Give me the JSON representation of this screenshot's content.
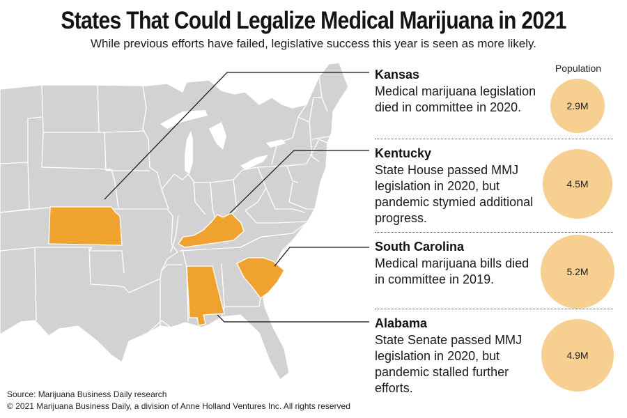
{
  "header": {
    "title": "States That Could Legalize Medical Marijuana in 2021",
    "subtitle": "While previous efforts have failed, legislative success this year is seen as more likely."
  },
  "population_header": "Population",
  "states": [
    {
      "name": "Kansas",
      "description": "Medical marijuana legislation died in committee in 2020.",
      "population": "2.9M",
      "population_millions": 2.9
    },
    {
      "name": "Kentucky",
      "description": "State House passed MMJ legislation in 2020, but pandemic stymied additional progress.",
      "population": "4.5M",
      "population_millions": 4.5
    },
    {
      "name": "South Carolina",
      "description": "Medical marijuana bills died in committee in 2019.",
      "population": "5.2M",
      "population_millions": 5.2
    },
    {
      "name": "Alabama",
      "description": "State Senate passed MMJ legislation in 2020, but pandemic stalled further efforts.",
      "population": "4.9M",
      "population_millions": 4.9
    }
  ],
  "footer": {
    "source": "Source: Marijuana Business Daily research",
    "copyright": "© 2021 Marijuana Business Daily, a division of Anne Holland Ventures Inc. All rights reserved"
  },
  "colors": {
    "highlight_state": "#f0a22e",
    "other_state": "#d2d2d2",
    "state_border": "#ffffff",
    "bubble": "#f6cf91"
  }
}
